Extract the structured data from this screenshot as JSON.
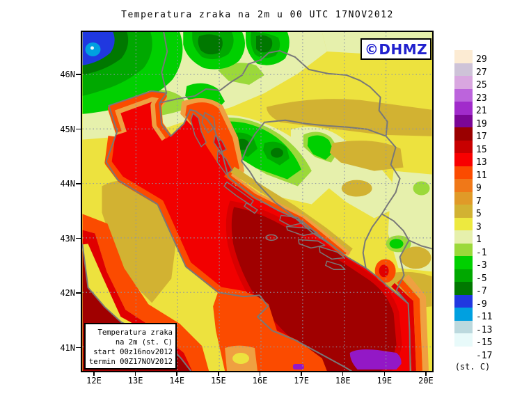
{
  "title": "Temperatura zraka na 2m u 00 UTC 17NOV2012",
  "logo": {
    "text": "©DHMZ",
    "color": "#2121CE"
  },
  "axes": {
    "lat_labels": [
      "46N",
      "45N",
      "44N",
      "43N",
      "42N",
      "41N"
    ],
    "lon_labels": [
      "12E",
      "13E",
      "14E",
      "15E",
      "16E",
      "17E",
      "18E",
      "19E",
      "20E"
    ]
  },
  "legend_box": {
    "line1": "Temperatura zraka",
    "line2": "na 2m (st. C)",
    "line3": "start 00z16nov2012",
    "line4": "termin 00Z17NOV2012"
  },
  "colorbar": {
    "unit_label": "(st. C)",
    "entries": [
      {
        "label": "29",
        "color": "#FCEBD3"
      },
      {
        "label": "27",
        "color": "#CEC3D8"
      },
      {
        "label": "25",
        "color": "#D9A7E0"
      },
      {
        "label": "23",
        "color": "#BC64DC"
      },
      {
        "label": "21",
        "color": "#A12BCB"
      },
      {
        "label": "19",
        "color": "#7B0695"
      },
      {
        "label": "17",
        "color": "#9A0000"
      },
      {
        "label": "15",
        "color": "#C80000"
      },
      {
        "label": "13",
        "color": "#F80000"
      },
      {
        "label": "11",
        "color": "#FB4B00"
      },
      {
        "label": "9",
        "color": "#F07818"
      },
      {
        "label": "7",
        "color": "#E09A28"
      },
      {
        "label": "5",
        "color": "#D2B232"
      },
      {
        "label": "3",
        "color": "#EDE93F"
      },
      {
        "label": "1",
        "color": "#E6F0AC"
      },
      {
        "label": "-1",
        "color": "#9BD93A"
      },
      {
        "label": "-3",
        "color": "#00D000"
      },
      {
        "label": "-5",
        "color": "#00A800"
      },
      {
        "label": "-7",
        "color": "#007800"
      },
      {
        "label": "-9",
        "color": "#2038E0"
      },
      {
        "label": "-11",
        "color": "#00A0E0"
      },
      {
        "label": "-13",
        "color": "#BCD9DE"
      },
      {
        "label": "-15",
        "color": "#E8FAFA"
      },
      {
        "label": "-17",
        "color": "#FFFFFF"
      }
    ]
  }
}
